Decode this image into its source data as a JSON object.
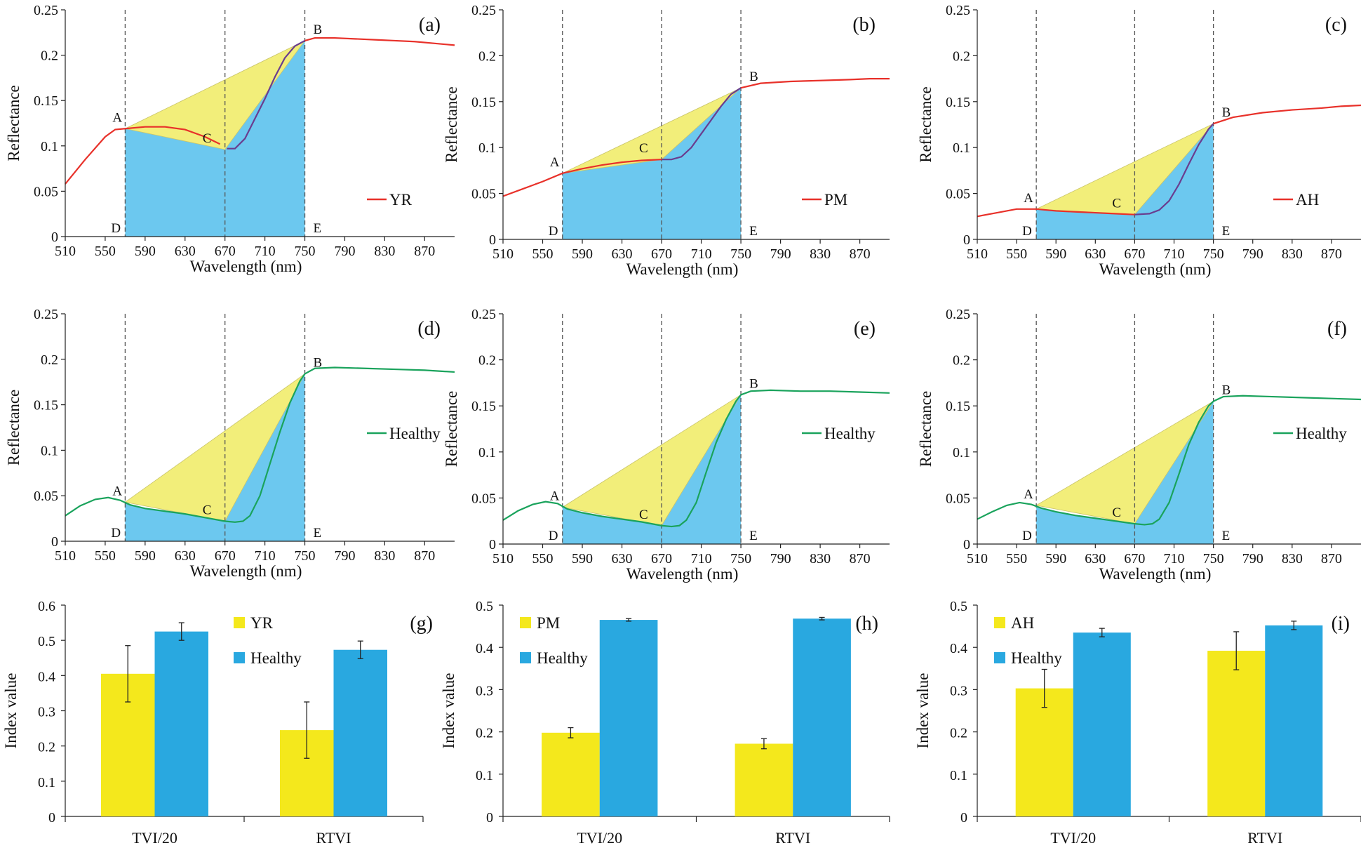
{
  "figure": "Spectral reflectance and triangle vegetation indices for diseased and healthy wheat",
  "colors": {
    "yr_curve": "#e8312a",
    "healthy_curve": "#1aa35c",
    "purple_curve": "#6a3d8f",
    "yellow_fill": "#f2ee7a",
    "blue_fill": "#6cc8ef",
    "bar_yellow": "#f4e81c",
    "bar_blue": "#29a8e0",
    "dashed": "#555555"
  },
  "chart_data": [
    {
      "type": "line",
      "panel": "(a)",
      "legend": "YR",
      "curve": "disease",
      "xlabel": "Wavelength (nm)",
      "ylabel": "Reflectance",
      "xlim": [
        510,
        900
      ],
      "ylim": [
        0,
        0.25
      ],
      "xticks": [
        "510",
        "550",
        "590",
        "630",
        "670",
        "710",
        "750",
        "790",
        "830",
        "870"
      ],
      "yticks": [
        "0",
        "0.05",
        "0.1",
        "0.15",
        "0.2",
        "0.25"
      ],
      "spectrum": [
        [
          510,
          0.058
        ],
        [
          530,
          0.085
        ],
        [
          550,
          0.11
        ],
        [
          560,
          0.118
        ],
        [
          570,
          0.119
        ],
        [
          590,
          0.121
        ],
        [
          610,
          0.121
        ],
        [
          630,
          0.118
        ],
        [
          650,
          0.11
        ],
        [
          665,
          0.102
        ],
        [
          672,
          0.097
        ],
        [
          680,
          0.097
        ],
        [
          690,
          0.108
        ],
        [
          700,
          0.13
        ],
        [
          710,
          0.152
        ],
        [
          720,
          0.176
        ],
        [
          730,
          0.197
        ],
        [
          740,
          0.21
        ],
        [
          750,
          0.216
        ],
        [
          760,
          0.219
        ],
        [
          780,
          0.219
        ],
        [
          800,
          0.218
        ],
        [
          820,
          0.217
        ],
        [
          840,
          0.216
        ],
        [
          860,
          0.215
        ],
        [
          880,
          0.213
        ],
        [
          900,
          0.211
        ]
      ],
      "points": {
        "A": [
          570,
          0.119
        ],
        "B": [
          750,
          0.216
        ],
        "C": [
          670,
          0.096
        ],
        "D": [
          570,
          0
        ],
        "E": [
          750,
          0
        ]
      },
      "vlines": [
        570,
        670,
        750
      ]
    },
    {
      "type": "line",
      "panel": "(b)",
      "legend": "PM",
      "curve": "disease",
      "xlabel": "Wavelength (nm)",
      "ylabel": "Reflectance",
      "xlim": [
        510,
        900
      ],
      "ylim": [
        0,
        0.25
      ],
      "xticks": [
        "510",
        "550",
        "590",
        "630",
        "670",
        "710",
        "750",
        "790",
        "830",
        "870"
      ],
      "yticks": [
        "0",
        "0.05",
        "0.1",
        "0.15",
        "0.2",
        "0.25"
      ],
      "spectrum": [
        [
          510,
          0.047
        ],
        [
          530,
          0.055
        ],
        [
          550,
          0.063
        ],
        [
          570,
          0.072
        ],
        [
          590,
          0.077
        ],
        [
          610,
          0.081
        ],
        [
          630,
          0.084
        ],
        [
          650,
          0.086
        ],
        [
          670,
          0.087
        ],
        [
          680,
          0.087
        ],
        [
          690,
          0.09
        ],
        [
          700,
          0.1
        ],
        [
          710,
          0.115
        ],
        [
          720,
          0.13
        ],
        [
          730,
          0.145
        ],
        [
          740,
          0.158
        ],
        [
          750,
          0.165
        ],
        [
          770,
          0.17
        ],
        [
          800,
          0.172
        ],
        [
          830,
          0.173
        ],
        [
          860,
          0.174
        ],
        [
          880,
          0.175
        ],
        [
          900,
          0.175
        ]
      ],
      "points": {
        "A": [
          570,
          0.072
        ],
        "B": [
          750,
          0.165
        ],
        "C": [
          670,
          0.087
        ],
        "D": [
          570,
          0
        ],
        "E": [
          750,
          0
        ]
      },
      "vlines": [
        570,
        670,
        750
      ]
    },
    {
      "type": "line",
      "panel": "(c)",
      "legend": "AH",
      "curve": "disease",
      "xlabel": "Wavelength (nm)",
      "ylabel": "Reflectance",
      "xlim": [
        510,
        900
      ],
      "ylim": [
        0,
        0.25
      ],
      "xticks": [
        "510",
        "550",
        "590",
        "630",
        "670",
        "710",
        "750",
        "790",
        "830",
        "870"
      ],
      "yticks": [
        "0",
        "0.05",
        "0.1",
        "0.15",
        "0.2",
        "0.25"
      ],
      "spectrum": [
        [
          510,
          0.025
        ],
        [
          530,
          0.029
        ],
        [
          550,
          0.033
        ],
        [
          570,
          0.033
        ],
        [
          590,
          0.031
        ],
        [
          610,
          0.03
        ],
        [
          630,
          0.029
        ],
        [
          650,
          0.028
        ],
        [
          670,
          0.027
        ],
        [
          685,
          0.028
        ],
        [
          695,
          0.032
        ],
        [
          705,
          0.042
        ],
        [
          715,
          0.06
        ],
        [
          725,
          0.082
        ],
        [
          735,
          0.103
        ],
        [
          745,
          0.12
        ],
        [
          750,
          0.126
        ],
        [
          770,
          0.133
        ],
        [
          800,
          0.138
        ],
        [
          830,
          0.141
        ],
        [
          860,
          0.143
        ],
        [
          880,
          0.145
        ],
        [
          900,
          0.146
        ]
      ],
      "points": {
        "A": [
          570,
          0.033
        ],
        "B": [
          750,
          0.126
        ],
        "C": [
          670,
          0.027
        ],
        "D": [
          570,
          0
        ],
        "E": [
          750,
          0
        ]
      },
      "vlines": [
        570,
        670,
        750
      ]
    },
    {
      "type": "line",
      "panel": "(d)",
      "legend": "Healthy",
      "curve": "healthy",
      "xlabel": "Wavelength (nm)",
      "ylabel": "Reflectance",
      "xlim": [
        510,
        900
      ],
      "ylim": [
        0,
        0.25
      ],
      "xticks": [
        "510",
        "550",
        "590",
        "630",
        "670",
        "710",
        "750",
        "790",
        "830",
        "870"
      ],
      "yticks": [
        "0",
        "0.05",
        "0.1",
        "0.15",
        "0.2",
        "0.25"
      ],
      "spectrum": [
        [
          510,
          0.028
        ],
        [
          525,
          0.039
        ],
        [
          540,
          0.046
        ],
        [
          553,
          0.048
        ],
        [
          565,
          0.045
        ],
        [
          575,
          0.04
        ],
        [
          590,
          0.036
        ],
        [
          610,
          0.033
        ],
        [
          630,
          0.03
        ],
        [
          650,
          0.026
        ],
        [
          670,
          0.022
        ],
        [
          680,
          0.021
        ],
        [
          688,
          0.022
        ],
        [
          695,
          0.028
        ],
        [
          705,
          0.05
        ],
        [
          715,
          0.085
        ],
        [
          725,
          0.12
        ],
        [
          735,
          0.152
        ],
        [
          745,
          0.176
        ],
        [
          750,
          0.184
        ],
        [
          760,
          0.19
        ],
        [
          780,
          0.191
        ],
        [
          810,
          0.19
        ],
        [
          840,
          0.189
        ],
        [
          870,
          0.188
        ],
        [
          900,
          0.186
        ]
      ],
      "points": {
        "A": [
          570,
          0.043
        ],
        "B": [
          750,
          0.184
        ],
        "C": [
          670,
          0.022
        ],
        "D": [
          570,
          0
        ],
        "E": [
          750,
          0
        ]
      },
      "vlines": [
        570,
        670,
        750
      ]
    },
    {
      "type": "line",
      "panel": "(e)",
      "legend": "Healthy",
      "curve": "healthy",
      "xlabel": "Wavelength (nm)",
      "ylabel": "Reflectance",
      "xlim": [
        510,
        900
      ],
      "ylim": [
        0,
        0.25
      ],
      "xticks": [
        "510",
        "550",
        "590",
        "630",
        "670",
        "710",
        "750",
        "790",
        "830",
        "870"
      ],
      "yticks": [
        "0",
        "0.05",
        "0.1",
        "0.15",
        "0.2",
        "0.25"
      ],
      "spectrum": [
        [
          510,
          0.026
        ],
        [
          525,
          0.036
        ],
        [
          540,
          0.043
        ],
        [
          553,
          0.046
        ],
        [
          565,
          0.044
        ],
        [
          575,
          0.038
        ],
        [
          590,
          0.034
        ],
        [
          610,
          0.03
        ],
        [
          630,
          0.027
        ],
        [
          650,
          0.024
        ],
        [
          670,
          0.02
        ],
        [
          680,
          0.019
        ],
        [
          688,
          0.02
        ],
        [
          695,
          0.026
        ],
        [
          705,
          0.045
        ],
        [
          715,
          0.078
        ],
        [
          725,
          0.11
        ],
        [
          735,
          0.135
        ],
        [
          745,
          0.155
        ],
        [
          750,
          0.162
        ],
        [
          760,
          0.166
        ],
        [
          780,
          0.167
        ],
        [
          810,
          0.166
        ],
        [
          840,
          0.166
        ],
        [
          870,
          0.165
        ],
        [
          900,
          0.164
        ]
      ],
      "points": {
        "A": [
          570,
          0.04
        ],
        "B": [
          750,
          0.162
        ],
        "C": [
          670,
          0.02
        ],
        "D": [
          570,
          0
        ],
        "E": [
          750,
          0
        ]
      },
      "vlines": [
        570,
        670,
        750
      ]
    },
    {
      "type": "line",
      "panel": "(f)",
      "legend": "Healthy",
      "curve": "healthy",
      "xlabel": "Wavelength (nm)",
      "ylabel": "Reflectance",
      "xlim": [
        510,
        900
      ],
      "ylim": [
        0,
        0.25
      ],
      "xticks": [
        "510",
        "550",
        "590",
        "630",
        "670",
        "710",
        "750",
        "790",
        "830",
        "870"
      ],
      "yticks": [
        "0",
        "0.05",
        "0.1",
        "0.15",
        "0.2",
        "0.25"
      ],
      "spectrum": [
        [
          510,
          0.027
        ],
        [
          525,
          0.035
        ],
        [
          540,
          0.042
        ],
        [
          553,
          0.045
        ],
        [
          565,
          0.043
        ],
        [
          575,
          0.039
        ],
        [
          590,
          0.035
        ],
        [
          610,
          0.031
        ],
        [
          630,
          0.028
        ],
        [
          650,
          0.025
        ],
        [
          670,
          0.022
        ],
        [
          680,
          0.021
        ],
        [
          688,
          0.022
        ],
        [
          695,
          0.027
        ],
        [
          705,
          0.045
        ],
        [
          715,
          0.076
        ],
        [
          725,
          0.108
        ],
        [
          735,
          0.132
        ],
        [
          745,
          0.15
        ],
        [
          750,
          0.155
        ],
        [
          760,
          0.16
        ],
        [
          780,
          0.161
        ],
        [
          810,
          0.16
        ],
        [
          840,
          0.159
        ],
        [
          870,
          0.158
        ],
        [
          900,
          0.157
        ]
      ],
      "points": {
        "A": [
          570,
          0.042
        ],
        "B": [
          750,
          0.155
        ],
        "C": [
          670,
          0.022
        ],
        "D": [
          570,
          0
        ],
        "E": [
          750,
          0
        ]
      },
      "vlines": [
        570,
        670,
        750
      ]
    },
    {
      "type": "bar",
      "panel": "(g)",
      "ylabel": "Index value",
      "ylim": [
        0,
        0.6
      ],
      "yticks": [
        "0",
        "0.1",
        "0.2",
        "0.3",
        "0.4",
        "0.5",
        "0.6"
      ],
      "categories": [
        "TVI/20",
        "RTVI"
      ],
      "series": [
        {
          "name": "YR",
          "values": [
            0.405,
            0.245
          ],
          "errors": [
            0.08,
            0.08
          ]
        },
        {
          "name": "Healthy",
          "values": [
            0.525,
            0.473
          ],
          "errors": [
            0.025,
            0.025
          ]
        }
      ]
    },
    {
      "type": "bar",
      "panel": "(h)",
      "ylabel": "Index value",
      "ylim": [
        0,
        0.5
      ],
      "yticks": [
        "0",
        "0.1",
        "0.2",
        "0.3",
        "0.4",
        "0.5"
      ],
      "categories": [
        "TVI/20",
        "RTVI"
      ],
      "series": [
        {
          "name": "PM",
          "values": [
            0.198,
            0.172
          ],
          "errors": [
            0.012,
            0.012
          ]
        },
        {
          "name": "Healthy",
          "values": [
            0.465,
            0.468
          ],
          "errors": [
            0.003,
            0.003
          ]
        }
      ]
    },
    {
      "type": "bar",
      "panel": "(i)",
      "ylabel": "Index value",
      "ylim": [
        0,
        0.5
      ],
      "yticks": [
        "0",
        "0.1",
        "0.2",
        "0.3",
        "0.4",
        "0.5"
      ],
      "categories": [
        "TVI/20",
        "RTVI"
      ],
      "series": [
        {
          "name": "AH",
          "values": [
            0.303,
            0.392
          ],
          "errors": [
            0.045,
            0.045
          ]
        },
        {
          "name": "Healthy",
          "values": [
            0.435,
            0.452
          ],
          "errors": [
            0.01,
            0.01
          ]
        }
      ]
    }
  ]
}
